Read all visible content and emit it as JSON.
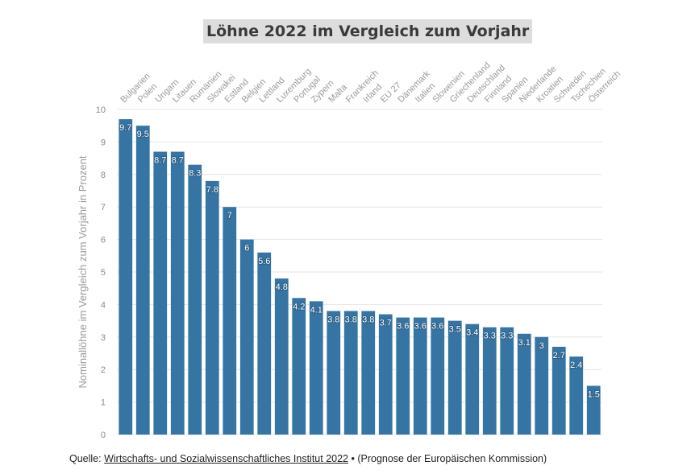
{
  "chart_data": {
    "type": "bar",
    "title": "Löhne 2022 im Vergleich zum Vorjahr",
    "ylabel": "Nominallöhne im Vergleich zum Vorjahr in Prozent",
    "xlabel": "",
    "ylim": [
      0,
      10
    ],
    "yticks": [
      0,
      1,
      2,
      3,
      4,
      5,
      6,
      7,
      8,
      9,
      10
    ],
    "grid": true,
    "bar_color": "#3574a3",
    "categories": [
      "Bulgarien",
      "Polen",
      "Ungarn",
      "Litauen",
      "Rumänien",
      "Slowakei",
      "Estland",
      "Belgien",
      "Lettland",
      "Luxemburg",
      "Portugal",
      "Zypern",
      "Malta",
      "Frankreich",
      "Irland",
      "EU 27",
      "Dänemark",
      "Italien",
      "Slowenien",
      "Griechenland",
      "Deutschland",
      "Finnland",
      "Spanien",
      "Niederlande",
      "Kroatien",
      "Schweden",
      "Tschechien",
      "Österreich"
    ],
    "values": [
      9.7,
      9.5,
      8.7,
      8.7,
      8.3,
      7.8,
      7,
      6,
      5.6,
      4.8,
      4.2,
      4.1,
      3.8,
      3.8,
      3.8,
      3.7,
      3.6,
      3.6,
      3.6,
      3.5,
      3.4,
      3.3,
      3.3,
      3.1,
      3,
      2.7,
      2.4,
      1.5
    ]
  },
  "footer": {
    "prefix": "Quelle: ",
    "source_link": "Wirtschafts- und Sozialwissenschaftliches Institut 2022",
    "suffix": " • (Prognose der Europäischen Kommission)"
  }
}
